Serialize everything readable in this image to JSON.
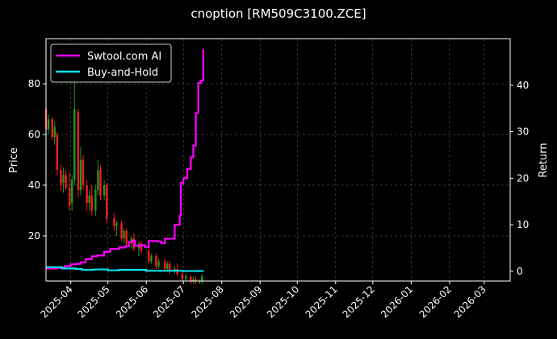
{
  "chart_data": {
    "type": "candlestick+line",
    "title": "cnoption [RM509C3100.ZCE]",
    "ylabel": "Price",
    "y2label": "Return",
    "xlim": [
      "2025-03-12",
      "2026-03-22"
    ],
    "ylim": [
      2.2,
      97.8
    ],
    "y2lim": [
      -2.1,
      50
    ],
    "xticks": [
      "2025-04",
      "2025-05",
      "2025-06",
      "2025-07",
      "2025-08",
      "2025-09",
      "2025-10",
      "2025-11",
      "2025-12",
      "2026-01",
      "2026-02",
      "2026-03"
    ],
    "yticks": [
      20,
      40,
      60,
      80
    ],
    "y2ticks": [
      0,
      10,
      20,
      30,
      40
    ],
    "grid": true,
    "legend_position": "top-left",
    "colors": {
      "up": "#1f9a1f",
      "down": "#ff1a1a",
      "strategy": "#ff00ff",
      "buyhold": "#00e5ee",
      "background": "#000000",
      "grid": "#555555"
    },
    "candles": [
      [
        "2025-03-12",
        70,
        72,
        58,
        62
      ],
      [
        "2025-03-14",
        62,
        68,
        60,
        66
      ],
      [
        "2025-03-17",
        66,
        67,
        58,
        59
      ],
      [
        "2025-03-19",
        59,
        65,
        56,
        63
      ],
      [
        "2025-03-21",
        60,
        61,
        44,
        46
      ],
      [
        "2025-03-24",
        46,
        48,
        38,
        40
      ],
      [
        "2025-03-26",
        41,
        47,
        37,
        44
      ],
      [
        "2025-03-28",
        44,
        46,
        38,
        39
      ],
      [
        "2025-03-31",
        39,
        45,
        30,
        32
      ],
      [
        "2025-04-02",
        33,
        44,
        30,
        42
      ],
      [
        "2025-04-04",
        42,
        88,
        40,
        70
      ],
      [
        "2025-04-07",
        69,
        70,
        35,
        38
      ],
      [
        "2025-04-09",
        38,
        55,
        36,
        50
      ],
      [
        "2025-04-11",
        50,
        52,
        38,
        40
      ],
      [
        "2025-04-14",
        40,
        42,
        30,
        33
      ],
      [
        "2025-04-16",
        33,
        38,
        30,
        36
      ],
      [
        "2025-04-18",
        36,
        40,
        28,
        30
      ],
      [
        "2025-04-21",
        30,
        40,
        28,
        38
      ],
      [
        "2025-04-23",
        38,
        50,
        36,
        46
      ],
      [
        "2025-04-25",
        46,
        48,
        34,
        36
      ],
      [
        "2025-04-28",
        36,
        42,
        34,
        40
      ],
      [
        "2025-04-30",
        40,
        41,
        25,
        27
      ],
      [
        "2025-05-06",
        27,
        29,
        22,
        24
      ],
      [
        "2025-05-08",
        24,
        26,
        20,
        25
      ],
      [
        "2025-05-12",
        25,
        26,
        18,
        19
      ],
      [
        "2025-05-14",
        19,
        23,
        17,
        22
      ],
      [
        "2025-05-16",
        22,
        23,
        16,
        17
      ],
      [
        "2025-05-20",
        17,
        20,
        15,
        19
      ],
      [
        "2025-05-22",
        19,
        21,
        14,
        15
      ],
      [
        "2025-05-26",
        15,
        18,
        12,
        17
      ],
      [
        "2025-05-28",
        17,
        18,
        13,
        14
      ],
      [
        "2025-06-03",
        14,
        15,
        9,
        10
      ],
      [
        "2025-06-05",
        10,
        13,
        9,
        12
      ],
      [
        "2025-06-09",
        12,
        13,
        7,
        8
      ],
      [
        "2025-06-11",
        8,
        11,
        7,
        10
      ],
      [
        "2025-06-16",
        10,
        11,
        6,
        7
      ],
      [
        "2025-06-18",
        7,
        10,
        6,
        9
      ],
      [
        "2025-06-20",
        9,
        10,
        5,
        6
      ],
      [
        "2025-06-24",
        6,
        8,
        5,
        7
      ],
      [
        "2025-06-26",
        7,
        9,
        4,
        5
      ],
      [
        "2025-06-30",
        5,
        6,
        2,
        3
      ],
      [
        "2025-07-03",
        3,
        5,
        2,
        4
      ],
      [
        "2025-07-07",
        4,
        4,
        1,
        2
      ],
      [
        "2025-07-09",
        2,
        4,
        1,
        3
      ],
      [
        "2025-07-11",
        3,
        4,
        1,
        2
      ],
      [
        "2025-07-14",
        2,
        3,
        1,
        2
      ],
      [
        "2025-07-16",
        2,
        5,
        1,
        4
      ]
    ],
    "series": [
      {
        "name": "Swtool.com AI",
        "axis": "right",
        "points": [
          [
            "2025-03-12",
            0.6
          ],
          [
            "2025-03-20",
            0.7
          ],
          [
            "2025-03-27",
            1.1
          ],
          [
            "2025-04-01",
            1.5
          ],
          [
            "2025-04-06",
            1.6
          ],
          [
            "2025-04-09",
            1.9
          ],
          [
            "2025-04-13",
            2.6
          ],
          [
            "2025-04-18",
            3.2
          ],
          [
            "2025-04-22",
            3.4
          ],
          [
            "2025-04-28",
            4.2
          ],
          [
            "2025-05-03",
            4.8
          ],
          [
            "2025-05-10",
            5.1
          ],
          [
            "2025-05-15",
            5.4
          ],
          [
            "2025-05-18",
            6.3
          ],
          [
            "2025-05-21",
            6.5
          ],
          [
            "2025-05-23",
            5.5
          ],
          [
            "2025-05-26",
            5.6
          ],
          [
            "2025-05-31",
            5.2
          ],
          [
            "2025-06-03",
            6.5
          ],
          [
            "2025-06-10",
            6.4
          ],
          [
            "2025-06-13",
            6.0
          ],
          [
            "2025-06-16",
            7.0
          ],
          [
            "2025-06-20",
            7.0
          ],
          [
            "2025-06-24",
            10.0
          ],
          [
            "2025-06-28",
            12.0
          ],
          [
            "2025-06-29",
            19.0
          ],
          [
            "2025-07-01",
            20.0
          ],
          [
            "2025-07-04",
            22.0
          ],
          [
            "2025-07-07",
            24.5
          ],
          [
            "2025-07-09",
            27.0
          ],
          [
            "2025-07-11",
            34.0
          ],
          [
            "2025-07-13",
            40.5
          ],
          [
            "2025-07-15",
            41.0
          ],
          [
            "2025-07-17",
            47.7
          ]
        ]
      },
      {
        "name": "Buy-and-Hold",
        "axis": "right",
        "points": [
          [
            "2025-03-12",
            0.9
          ],
          [
            "2025-03-25",
            0.6
          ],
          [
            "2025-04-05",
            0.5
          ],
          [
            "2025-04-10",
            0.3
          ],
          [
            "2025-04-20",
            0.4
          ],
          [
            "2025-05-01",
            0.2
          ],
          [
            "2025-05-10",
            0.3
          ],
          [
            "2025-06-01",
            0.1
          ],
          [
            "2025-07-01",
            0.05
          ],
          [
            "2025-07-17",
            0.0
          ]
        ]
      }
    ]
  }
}
